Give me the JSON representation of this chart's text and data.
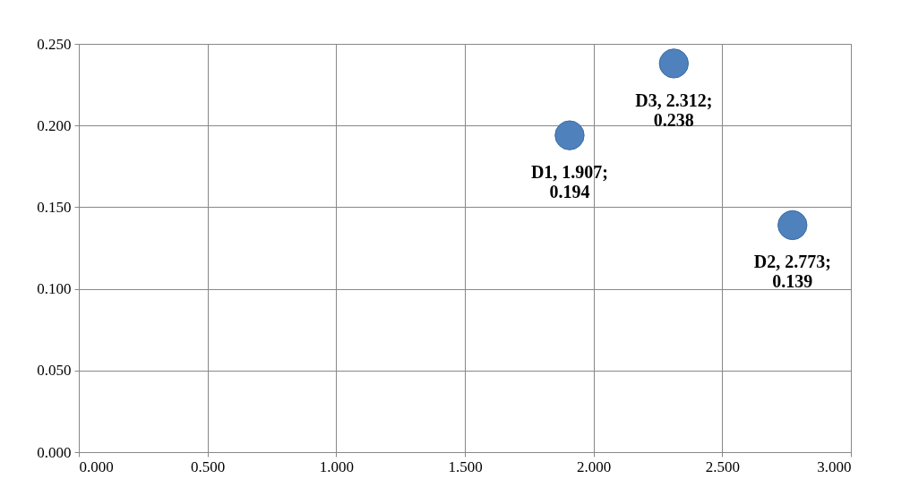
{
  "chart_data": {
    "type": "scatter",
    "x": [
      1.907,
      2.773,
      2.312
    ],
    "series": [
      {
        "color": "#4f81bd",
        "values": [
          0.194,
          0.139,
          0.238
        ],
        "value_labels": [
          "D1, 1.907;\n0.194",
          "D2, 2.773;\n0.139",
          "D3, 2.312;\n0.238"
        ]
      }
    ],
    "xlim": [
      0,
      3
    ],
    "ylim": [
      0,
      0.25
    ],
    "xticks": [
      {
        "value": 0,
        "label": "0.000"
      },
      {
        "value": 0.5,
        "label": "0.500"
      },
      {
        "value": 1,
        "label": "1.000"
      },
      {
        "value": 1.5,
        "label": "1.500"
      },
      {
        "value": 2,
        "label": "2.000"
      },
      {
        "value": 2.5,
        "label": "2.500"
      },
      {
        "value": 3,
        "label": "3.000"
      }
    ],
    "yticks": [
      {
        "value": 0,
        "label": "0.000"
      },
      {
        "value": 0.05,
        "label": "0.050"
      },
      {
        "value": 0.1,
        "label": "0.100"
      },
      {
        "value": 0.15,
        "label": "0.150"
      },
      {
        "value": 0.2,
        "label": "0.200"
      },
      {
        "value": 0.25,
        "label": "0.250"
      }
    ],
    "grid": true,
    "marker": "circle"
  }
}
